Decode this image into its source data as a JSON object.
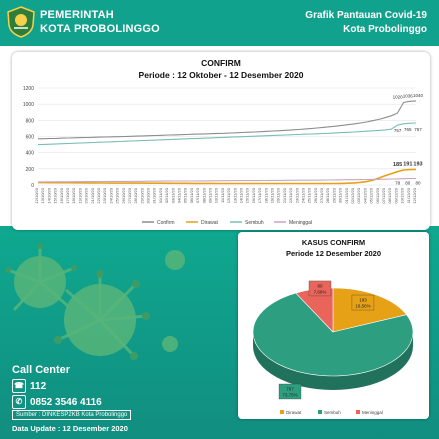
{
  "header": {
    "org_line1": "PEMERINTAH",
    "org_line2": "KOTA PROBOLINGGO",
    "title_line1": "Grafik Pantauan Covid-19",
    "title_line2": "Kota Probolinggo",
    "brand_color": "#11a28d",
    "logo_icon": "city-emblem-icon"
  },
  "line_chart": {
    "title": "CONFIRM",
    "subtitle": "Periode : 12 Oktober - 12 Desember 2020",
    "legend": [
      "Confirm",
      "Dirawat",
      "Sembuh",
      "Meninggal"
    ],
    "colors": {
      "Confirm": "#8c8c8c",
      "Dirawat": "#e6a117",
      "Sembuh": "#79bdb5",
      "Meninggal": "#c9a6c2"
    },
    "end_labels": {
      "Confirm": [
        "1020",
        "1036",
        "1040"
      ],
      "Sembuh": [
        "757",
        "765",
        "767"
      ],
      "Dirawat": [
        "185",
        "191",
        "193"
      ],
      "Meninggal": [
        "78",
        "80",
        "80"
      ]
    }
  },
  "pie_chart": {
    "title_line1": "KASUS CONFIRM",
    "title_line2": "Periode 12 Desember 2020",
    "slices": [
      {
        "name": "Dirawat",
        "value": 193,
        "pct": "18,56%",
        "color": "#e6a117"
      },
      {
        "name": "Sembuh",
        "value": 767,
        "pct": "73,75%",
        "color": "#2e9e80"
      },
      {
        "name": "Meninggal",
        "value": 80,
        "pct": "7,69%",
        "color": "#e9645a"
      }
    ]
  },
  "contact": {
    "title": "Call Center",
    "hotline": "112",
    "phone": "0852 3546 4116",
    "source": "Sumber : DINKESP2KB Kota Probolinggo",
    "update": "Data Update : 12 Desember 2020"
  },
  "chart_data": [
    {
      "type": "line",
      "title": "CONFIRM",
      "subtitle": "Periode : 12 Oktober - 12 Desember 2020",
      "x_start": "12/10/20",
      "x_end": "12/12/20",
      "x_count": 62,
      "ylim": [
        0,
        1200
      ],
      "yticks": [
        0,
        200,
        400,
        600,
        800,
        1000,
        1200
      ],
      "legend_position": "bottom",
      "grid": true,
      "series": [
        {
          "name": "Confirm",
          "values": [
            572,
            573,
            575,
            577,
            580,
            582,
            584,
            586,
            588,
            590,
            592,
            594,
            596,
            598,
            600,
            603,
            605,
            607,
            610,
            612,
            615,
            618,
            620,
            622,
            625,
            628,
            630,
            632,
            635,
            638,
            640,
            643,
            646,
            650,
            653,
            656,
            660,
            664,
            668,
            672,
            677,
            682,
            687,
            692,
            698,
            705,
            712,
            720,
            728,
            737,
            746,
            756,
            767,
            780,
            795,
            812,
            832,
            856,
            890,
            1020,
            1036,
            1040
          ]
        },
        {
          "name": "Sembuh",
          "values": [
            500,
            502,
            505,
            508,
            511,
            514,
            517,
            520,
            523,
            526,
            529,
            532,
            535,
            538,
            541,
            544,
            547,
            550,
            553,
            556,
            559,
            562,
            565,
            568,
            571,
            574,
            577,
            580,
            583,
            586,
            589,
            592,
            595,
            598,
            601,
            604,
            607,
            610,
            613,
            616,
            619,
            622,
            625,
            628,
            631,
            634,
            637,
            640,
            644,
            648,
            652,
            656,
            661,
            666,
            671,
            676,
            682,
            690,
            740,
            757,
            765,
            767
          ]
        },
        {
          "name": "Dirawat",
          "values": [
            30,
            30,
            29,
            29,
            28,
            28,
            27,
            27,
            26,
            26,
            25,
            25,
            24,
            24,
            24,
            23,
            23,
            23,
            22,
            22,
            22,
            21,
            21,
            21,
            21,
            20,
            20,
            20,
            20,
            19,
            19,
            19,
            19,
            19,
            18,
            18,
            18,
            18,
            18,
            18,
            18,
            18,
            18,
            18,
            18,
            18,
            18,
            18,
            19,
            20,
            22,
            26,
            32,
            42,
            60,
            85,
            115,
            140,
            165,
            185,
            191,
            193
          ]
        },
        {
          "name": "Meninggal",
          "values": [
            38,
            38,
            39,
            39,
            40,
            40,
            41,
            41,
            42,
            42,
            43,
            43,
            44,
            44,
            45,
            45,
            46,
            46,
            47,
            47,
            48,
            48,
            49,
            49,
            50,
            50,
            51,
            51,
            52,
            52,
            53,
            53,
            54,
            54,
            55,
            55,
            56,
            56,
            57,
            57,
            58,
            58,
            59,
            59,
            60,
            60,
            61,
            62,
            63,
            64,
            65,
            66,
            67,
            68,
            69,
            70,
            72,
            74,
            76,
            78,
            80,
            80
          ]
        }
      ]
    },
    {
      "type": "pie",
      "title": "KASUS CONFIRM",
      "subtitle": "Periode 12 Desember 2020",
      "categories": [
        "Dirawat",
        "Sembuh",
        "Meninggal"
      ],
      "values": [
        193,
        767,
        80
      ],
      "percent_labels": [
        "18,56%",
        "73,75%",
        "7,69%"
      ],
      "legend_position": "bottom"
    }
  ]
}
